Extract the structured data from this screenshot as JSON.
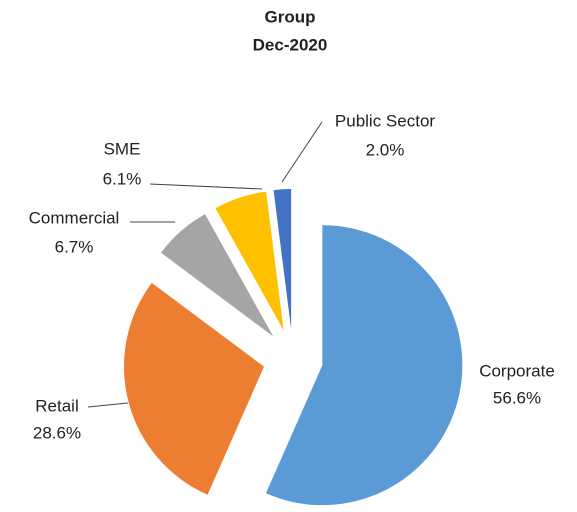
{
  "chart_data": {
    "type": "pie",
    "title": [
      "Group",
      "Dec-2020"
    ],
    "categories": [
      "Corporate",
      "Retail",
      "Commercial",
      "SME",
      "Public Sector"
    ],
    "values": [
      56.6,
      28.6,
      6.7,
      6.1,
      2.0
    ],
    "value_labels": [
      "56.6%",
      "28.6%",
      "6.7%",
      "6.1%",
      "2.0%"
    ],
    "colors": [
      "#5b9bd5",
      "#ed7d31",
      "#a5a5a5",
      "#ffc000",
      "#4472c4"
    ]
  }
}
